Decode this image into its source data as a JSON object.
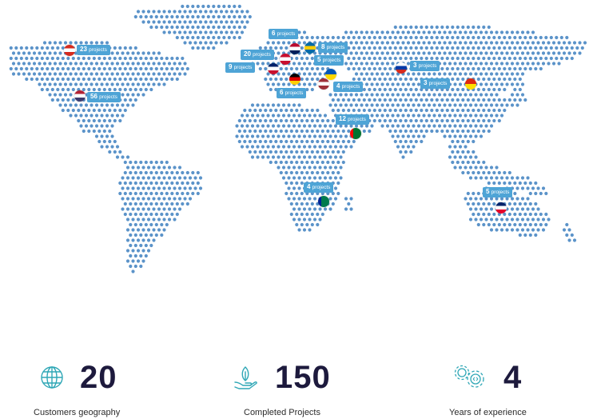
{
  "map": {
    "markers": [
      {
        "country": "Canada",
        "label_count": "23",
        "label_unit": "projects",
        "flag": [
          "#d52b1e",
          "#ffffff",
          "#d52b1e"
        ]
      },
      {
        "country": "United States",
        "label_count": "56",
        "label_unit": "projects",
        "flag": [
          "#b22234",
          "#ffffff",
          "#3c3b6e"
        ]
      },
      {
        "country": "Norway",
        "label_count": "6",
        "label_unit": "projects",
        "flag": [
          "#ba0c2f",
          "#ffffff",
          "#00205b"
        ]
      },
      {
        "country": "Denmark",
        "label_count": "20",
        "label_unit": "projects",
        "flag": [
          "#c8102e",
          "#ffffff",
          "#c8102e"
        ]
      },
      {
        "country": "Sweden",
        "label_count": "8",
        "label_unit": "projects",
        "flag": [
          "#006aa7",
          "#fecc00",
          "#006aa7"
        ]
      },
      {
        "country": "United Kingdom",
        "label_count": "9",
        "label_unit": "projects",
        "flag": [
          "#012169",
          "#ffffff",
          "#c8102e"
        ]
      },
      {
        "country": "Ukraine",
        "label_count": "5",
        "label_unit": "projects",
        "flag": [
          "#0057b7",
          "#ffd700"
        ]
      },
      {
        "country": "Germany",
        "label_count": "6",
        "label_unit": "projects",
        "flag": [
          "#000000",
          "#dd0000",
          "#ffce00"
        ]
      },
      {
        "country": "Latvia",
        "label_count": "4",
        "label_unit": "projects",
        "flag": [
          "#9e3039",
          "#ffffff",
          "#9e3039"
        ]
      },
      {
        "country": "Russia",
        "label_count": "3",
        "label_unit": "projects",
        "flag": [
          "#ffffff",
          "#0039a6",
          "#d52b1e"
        ]
      },
      {
        "country": "China",
        "label_count": "3",
        "label_unit": "projects",
        "flag": [
          "#de2910",
          "#ffde00"
        ]
      },
      {
        "country": "United Arab Emirates",
        "label_count": "12",
        "label_unit": "projects",
        "flag": [
          "#00732f",
          "#ffffff",
          "#000000",
          "#ff0000"
        ]
      },
      {
        "country": "South Africa",
        "label_count": "4",
        "label_unit": "projects",
        "flag": [
          "#007a4d",
          "#ffb612",
          "#de3831",
          "#002395"
        ]
      },
      {
        "country": "Australia",
        "label_count": "5",
        "label_unit": "projects",
        "flag": [
          "#012169",
          "#ffffff",
          "#e4002b"
        ]
      }
    ],
    "dot_color": "#5b93c9",
    "tag_color": "#4ea4d6"
  },
  "stats": [
    {
      "icon": "globe-icon",
      "value": "20",
      "label": "Customers geography"
    },
    {
      "icon": "hand-sprout-icon",
      "value": "150",
      "label": "Completed Projects"
    },
    {
      "icon": "gears-icon",
      "value": "4",
      "label": "Years of experience"
    }
  ],
  "colors": {
    "number": "#1d1a3d",
    "icon": "#2fa7b6"
  }
}
